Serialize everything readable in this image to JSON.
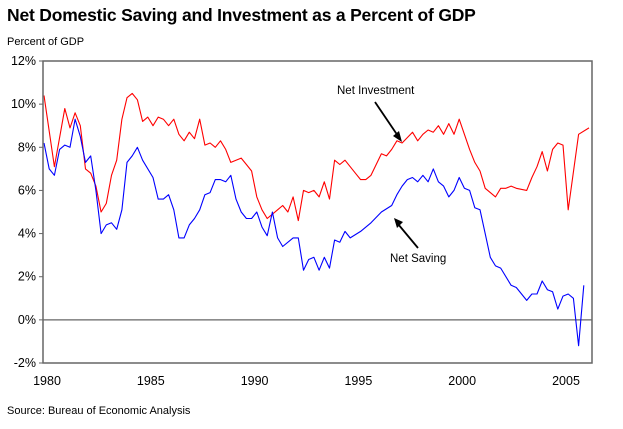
{
  "chart_data": {
    "type": "line",
    "title": "Net Domestic Saving and Investment as a Percent of GDP",
    "ylabel": "Percent of GDP",
    "xlabel": "",
    "source": "Source: Bureau of Economic Analysis",
    "xlim": [
      1980,
      2006.3
    ],
    "ylim": [
      -2,
      12
    ],
    "x_ticks": [
      1980,
      1985,
      1990,
      1995,
      2000,
      2005
    ],
    "x_tick_labels": [
      "1980",
      "1985",
      "1990",
      "1995",
      "2000",
      "2005"
    ],
    "y_ticks": [
      -2,
      0,
      2,
      4,
      6,
      8,
      10,
      12
    ],
    "y_tick_labels": [
      "-2%",
      "0%",
      "2%",
      "4%",
      "6%",
      "8%",
      "10%",
      "12%"
    ],
    "grid": false,
    "zero_line": true,
    "annotations": [
      {
        "text": "Net Investment",
        "series": "Net Investment"
      },
      {
        "text": "Net Saving",
        "series": "Net Saving"
      }
    ],
    "series": [
      {
        "name": "Net Investment",
        "color": "#ff0000",
        "points": [
          [
            1980.0,
            10.4
          ],
          [
            1980.5,
            7.1
          ],
          [
            1981.0,
            9.8
          ],
          [
            1981.25,
            8.9
          ],
          [
            1981.5,
            9.6
          ],
          [
            1981.75,
            9.0
          ],
          [
            1982.0,
            7.0
          ],
          [
            1982.25,
            6.8
          ],
          [
            1982.5,
            6.2
          ],
          [
            1982.75,
            5.0
          ],
          [
            1983.0,
            5.4
          ],
          [
            1983.25,
            6.7
          ],
          [
            1983.5,
            7.4
          ],
          [
            1983.75,
            9.3
          ],
          [
            1984.0,
            10.3
          ],
          [
            1984.25,
            10.5
          ],
          [
            1984.5,
            10.2
          ],
          [
            1984.75,
            9.2
          ],
          [
            1985.0,
            9.4
          ],
          [
            1985.25,
            9.0
          ],
          [
            1985.5,
            9.4
          ],
          [
            1985.75,
            9.3
          ],
          [
            1986.0,
            9.0
          ],
          [
            1986.25,
            9.3
          ],
          [
            1986.5,
            8.6
          ],
          [
            1986.75,
            8.3
          ],
          [
            1987.0,
            8.7
          ],
          [
            1987.25,
            8.4
          ],
          [
            1987.5,
            9.3
          ],
          [
            1987.75,
            8.1
          ],
          [
            1988.0,
            8.2
          ],
          [
            1988.25,
            8.0
          ],
          [
            1988.5,
            8.3
          ],
          [
            1988.75,
            7.9
          ],
          [
            1989.0,
            7.3
          ],
          [
            1989.25,
            7.4
          ],
          [
            1989.5,
            7.5
          ],
          [
            1989.75,
            7.2
          ],
          [
            1990.0,
            6.9
          ],
          [
            1990.25,
            5.7
          ],
          [
            1990.5,
            5.1
          ],
          [
            1990.75,
            4.7
          ],
          [
            1991.25,
            5.1
          ],
          [
            1991.5,
            5.3
          ],
          [
            1991.75,
            5.0
          ],
          [
            1992.0,
            5.7
          ],
          [
            1992.25,
            4.6
          ],
          [
            1992.5,
            6.0
          ],
          [
            1992.75,
            5.9
          ],
          [
            1993.0,
            6.0
          ],
          [
            1993.25,
            5.7
          ],
          [
            1993.5,
            6.4
          ],
          [
            1993.75,
            5.6
          ],
          [
            1994.0,
            7.4
          ],
          [
            1994.25,
            7.2
          ],
          [
            1994.5,
            7.4
          ],
          [
            1994.75,
            7.1
          ],
          [
            1995.0,
            6.8
          ],
          [
            1995.25,
            6.5
          ],
          [
            1995.5,
            6.5
          ],
          [
            1995.75,
            6.7
          ],
          [
            1996.25,
            7.7
          ],
          [
            1996.5,
            7.6
          ],
          [
            1996.75,
            7.9
          ],
          [
            1997.0,
            8.3
          ],
          [
            1997.25,
            8.2
          ],
          [
            1997.75,
            8.7
          ],
          [
            1998.0,
            8.3
          ],
          [
            1998.25,
            8.6
          ],
          [
            1998.5,
            8.8
          ],
          [
            1998.75,
            8.7
          ],
          [
            1999.0,
            9.0
          ],
          [
            1999.25,
            8.6
          ],
          [
            1999.5,
            9.1
          ],
          [
            1999.75,
            8.6
          ],
          [
            2000.0,
            9.3
          ],
          [
            2000.25,
            8.6
          ],
          [
            2000.5,
            7.9
          ],
          [
            2000.75,
            7.3
          ],
          [
            2001.0,
            6.9
          ],
          [
            2001.25,
            6.1
          ],
          [
            2001.5,
            5.9
          ],
          [
            2001.75,
            5.7
          ],
          [
            2002.0,
            6.1
          ],
          [
            2002.25,
            6.1
          ],
          [
            2002.5,
            6.2
          ],
          [
            2002.75,
            6.1
          ],
          [
            2003.25,
            6.0
          ],
          [
            2003.5,
            6.6
          ],
          [
            2003.75,
            7.1
          ],
          [
            2004.0,
            7.8
          ],
          [
            2004.25,
            6.9
          ],
          [
            2004.5,
            7.9
          ],
          [
            2004.75,
            8.2
          ],
          [
            2005.0,
            8.1
          ],
          [
            2005.25,
            5.1
          ],
          [
            2005.75,
            8.6
          ],
          [
            2006.25,
            8.9
          ]
        ]
      },
      {
        "name": "Net Saving",
        "color": "#0000ff",
        "points": [
          [
            1980.0,
            8.2
          ],
          [
            1980.25,
            7.0
          ],
          [
            1980.5,
            6.7
          ],
          [
            1980.75,
            7.9
          ],
          [
            1981.0,
            8.1
          ],
          [
            1981.25,
            8.0
          ],
          [
            1981.5,
            9.3
          ],
          [
            1981.75,
            8.5
          ],
          [
            1982.0,
            7.3
          ],
          [
            1982.25,
            7.6
          ],
          [
            1982.5,
            6.0
          ],
          [
            1982.75,
            4.0
          ],
          [
            1983.0,
            4.4
          ],
          [
            1983.25,
            4.5
          ],
          [
            1983.5,
            4.2
          ],
          [
            1983.75,
            5.1
          ],
          [
            1984.0,
            7.3
          ],
          [
            1984.25,
            7.6
          ],
          [
            1984.5,
            8.0
          ],
          [
            1984.75,
            7.4
          ],
          [
            1985.25,
            6.6
          ],
          [
            1985.5,
            5.6
          ],
          [
            1985.75,
            5.6
          ],
          [
            1986.0,
            5.8
          ],
          [
            1986.25,
            5.1
          ],
          [
            1986.5,
            3.8
          ],
          [
            1986.75,
            3.8
          ],
          [
            1987.0,
            4.4
          ],
          [
            1987.25,
            4.7
          ],
          [
            1987.5,
            5.1
          ],
          [
            1987.75,
            5.8
          ],
          [
            1988.0,
            5.9
          ],
          [
            1988.25,
            6.5
          ],
          [
            1988.5,
            6.5
          ],
          [
            1988.75,
            6.4
          ],
          [
            1989.0,
            6.7
          ],
          [
            1989.25,
            5.6
          ],
          [
            1989.5,
            5.0
          ],
          [
            1989.75,
            4.7
          ],
          [
            1990.0,
            4.7
          ],
          [
            1990.25,
            5.0
          ],
          [
            1990.5,
            4.3
          ],
          [
            1990.75,
            3.9
          ],
          [
            1991.0,
            5.0
          ],
          [
            1991.25,
            3.8
          ],
          [
            1991.5,
            3.4
          ],
          [
            1992.0,
            3.8
          ],
          [
            1992.25,
            3.8
          ],
          [
            1992.5,
            2.3
          ],
          [
            1992.75,
            2.8
          ],
          [
            1993.0,
            2.9
          ],
          [
            1993.25,
            2.3
          ],
          [
            1993.5,
            2.9
          ],
          [
            1993.75,
            2.4
          ],
          [
            1994.0,
            3.7
          ],
          [
            1994.25,
            3.6
          ],
          [
            1994.5,
            4.1
          ],
          [
            1994.75,
            3.8
          ],
          [
            1995.25,
            4.1
          ],
          [
            1995.75,
            4.5
          ],
          [
            1996.25,
            5.0
          ],
          [
            1996.75,
            5.3
          ],
          [
            1997.0,
            5.8
          ],
          [
            1997.25,
            6.2
          ],
          [
            1997.5,
            6.5
          ],
          [
            1997.75,
            6.6
          ],
          [
            1998.0,
            6.4
          ],
          [
            1998.25,
            6.7
          ],
          [
            1998.5,
            6.4
          ],
          [
            1998.75,
            7.0
          ],
          [
            1999.0,
            6.4
          ],
          [
            1999.25,
            6.2
          ],
          [
            1999.5,
            5.7
          ],
          [
            1999.75,
            6.0
          ],
          [
            2000.0,
            6.6
          ],
          [
            2000.25,
            6.1
          ],
          [
            2000.5,
            6.0
          ],
          [
            2000.75,
            5.2
          ],
          [
            2001.0,
            5.1
          ],
          [
            2001.25,
            4.0
          ],
          [
            2001.5,
            2.9
          ],
          [
            2001.75,
            2.5
          ],
          [
            2002.0,
            2.4
          ],
          [
            2002.5,
            1.6
          ],
          [
            2002.75,
            1.5
          ],
          [
            2003.25,
            0.9
          ],
          [
            2003.5,
            1.2
          ],
          [
            2003.75,
            1.2
          ],
          [
            2004.0,
            1.8
          ],
          [
            2004.25,
            1.4
          ],
          [
            2004.5,
            1.3
          ],
          [
            2004.75,
            0.5
          ],
          [
            2005.0,
            1.1
          ],
          [
            2005.25,
            1.2
          ],
          [
            2005.5,
            1.0
          ],
          [
            2005.75,
            -1.2
          ],
          [
            2006.0,
            1.6
          ]
        ]
      }
    ]
  }
}
